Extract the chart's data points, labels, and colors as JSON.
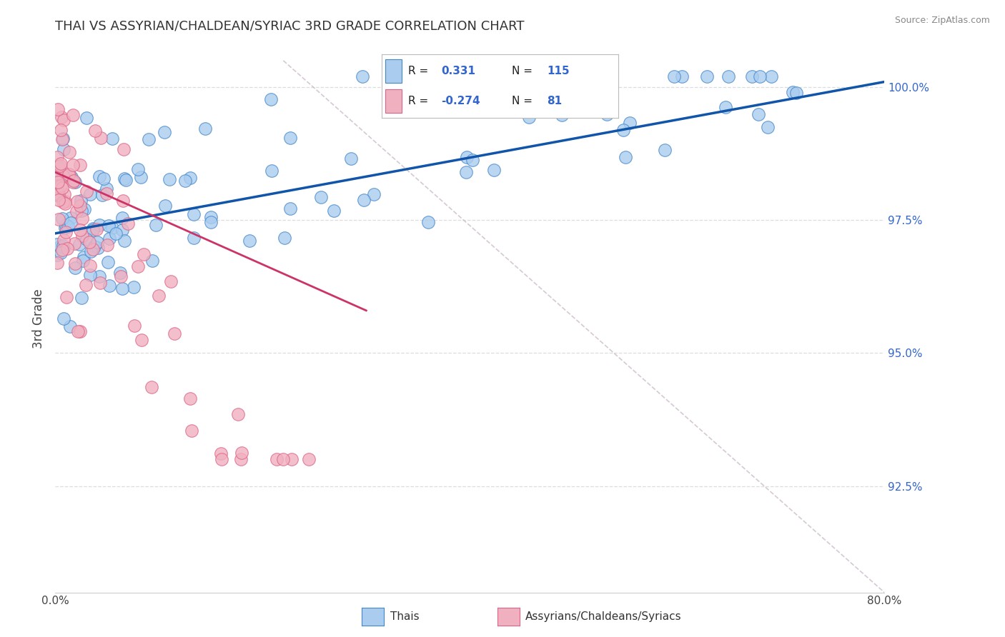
{
  "title": "THAI VS ASSYRIAN/CHALDEAN/SYRIAC 3RD GRADE CORRELATION CHART",
  "source_text": "Source: ZipAtlas.com",
  "ylabel": "3rd Grade",
  "xlim": [
    0.0,
    0.8
  ],
  "ylim": [
    0.905,
    1.008
  ],
  "blue_color": "#aaccee",
  "blue_edge": "#4488cc",
  "pink_color": "#f0b0c0",
  "pink_edge": "#dd6688",
  "trend_blue": "#1155aa",
  "trend_pink": "#cc3366",
  "ref_line_color": "#ccbbcc",
  "title_color": "#333333",
  "source_color": "#888888",
  "label_color": "#3366cc",
  "background": "#ffffff",
  "grid_color": "#dddddd",
  "ytick_positions": [
    0.925,
    0.95,
    0.975,
    1.0
  ],
  "ytick_labels": [
    "92.5%",
    "95.0%",
    "97.5%",
    "100.0%"
  ],
  "xtick_positions": [
    0.0,
    0.8
  ],
  "xtick_labels": [
    "0.0%",
    "80.0%"
  ],
  "blue_trend_x0": 0.0,
  "blue_trend_y0": 0.9725,
  "blue_trend_x1": 0.8,
  "blue_trend_y1": 1.001,
  "pink_trend_x0": 0.0,
  "pink_trend_y0": 0.984,
  "pink_trend_x1": 0.3,
  "pink_trend_y1": 0.958,
  "ref_line_x0": 0.22,
  "ref_line_y0": 1.005,
  "ref_line_x1": 0.8,
  "ref_line_y1": 0.905
}
